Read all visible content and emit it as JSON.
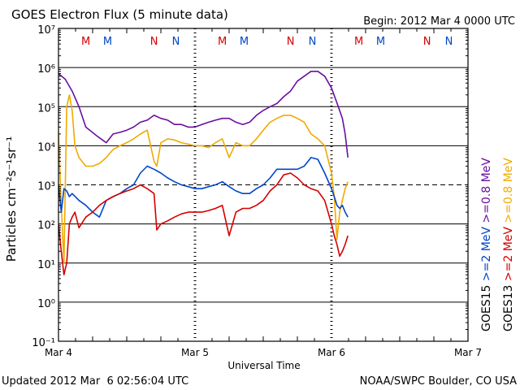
{
  "chart_data": {
    "type": "line",
    "title": "GOES Electron Flux (5 minute data)",
    "begin_label": "Begin: 2012 Mar 4 0000 UTC",
    "xlabel": "Universal Time",
    "ylabel": "Particles cm⁻²s⁻¹sr⁻¹",
    "y_scale": "log",
    "ylim": [
      0.1,
      10000000
    ],
    "y_ticks": [
      {
        "value": 10000000,
        "label": "10⁷"
      },
      {
        "value": 1000000,
        "label": "10⁶"
      },
      {
        "value": 100000,
        "label": "10⁵"
      },
      {
        "value": 10000,
        "label": "10⁴"
      },
      {
        "value": 1000,
        "label": "10³"
      },
      {
        "value": 100,
        "label": "10²"
      },
      {
        "value": 10,
        "label": "10¹"
      },
      {
        "value": 1,
        "label": "10⁰"
      },
      {
        "value": 0.1,
        "label": "10⁻¹"
      }
    ],
    "xlim_days": [
      0,
      3
    ],
    "x_ticks": [
      {
        "day": 0,
        "label": "Mar 4"
      },
      {
        "day": 1,
        "label": "Mar 5"
      },
      {
        "day": 2,
        "label": "Mar 6"
      },
      {
        "day": 3,
        "label": "Mar 7"
      }
    ],
    "threshold_line": 1000,
    "markers": [
      {
        "day": 0.2,
        "label": "M",
        "color": "#d40000"
      },
      {
        "day": 0.36,
        "label": "M",
        "color": "#0046c8"
      },
      {
        "day": 0.7,
        "label": "N",
        "color": "#d40000"
      },
      {
        "day": 0.86,
        "label": "N",
        "color": "#0046c8"
      },
      {
        "day": 1.2,
        "label": "M",
        "color": "#d40000"
      },
      {
        "day": 1.36,
        "label": "M",
        "color": "#0046c8"
      },
      {
        "day": 1.7,
        "label": "N",
        "color": "#d40000"
      },
      {
        "day": 1.86,
        "label": "N",
        "color": "#0046c8"
      },
      {
        "day": 2.2,
        "label": "M",
        "color": "#d40000"
      },
      {
        "day": 2.36,
        "label": "M",
        "color": "#0046c8"
      },
      {
        "day": 2.7,
        "label": "N",
        "color": "#d40000"
      },
      {
        "day": 2.86,
        "label": "N",
        "color": "#0046c8"
      }
    ],
    "legend": {
      "goes13": {
        "label": "GOES13",
        "color": "#000000"
      },
      "goes15": {
        "label": "GOES15",
        "color": "#000000"
      },
      "entries": [
        {
          "label": ">=0.8 MeV",
          "color": "#f0aa00"
        },
        {
          "label": ">=0.8 MeV",
          "color": "#6a0fa0"
        },
        {
          "label": ">=2 MeV",
          "color": "#d40000"
        },
        {
          "label": ">=2 MeV",
          "color": "#0046c8"
        }
      ]
    },
    "series": [
      {
        "name": "GOES15 >=0.8 MeV",
        "color": "#6a0fa0",
        "x": [
          0.0,
          0.05,
          0.1,
          0.15,
          0.2,
          0.28,
          0.35,
          0.4,
          0.45,
          0.5,
          0.55,
          0.6,
          0.65,
          0.7,
          0.75,
          0.8,
          0.85,
          0.9,
          0.95,
          1.0,
          1.05,
          1.1,
          1.15,
          1.2,
          1.25,
          1.3,
          1.35,
          1.4,
          1.45,
          1.5,
          1.55,
          1.6,
          1.65,
          1.7,
          1.75,
          1.8,
          1.85,
          1.9,
          1.95,
          2.0,
          2.05,
          2.08,
          2.1,
          2.12
        ],
        "y": [
          700000,
          500000,
          250000,
          100000,
          30000,
          18000,
          12000,
          20000,
          22000,
          25000,
          30000,
          40000,
          45000,
          60000,
          50000,
          45000,
          35000,
          35000,
          30000,
          30000,
          35000,
          40000,
          45000,
          50000,
          50000,
          40000,
          35000,
          40000,
          60000,
          80000,
          100000,
          120000,
          180000,
          250000,
          450000,
          600000,
          800000,
          800000,
          600000,
          300000,
          100000,
          50000,
          20000,
          5000
        ]
      },
      {
        "name": "GOES13 >=0.8 MeV",
        "color": "#f0aa00",
        "x": [
          0.0,
          0.02,
          0.04,
          0.06,
          0.08,
          0.1,
          0.12,
          0.15,
          0.2,
          0.25,
          0.3,
          0.35,
          0.4,
          0.45,
          0.5,
          0.55,
          0.6,
          0.65,
          0.7,
          0.72,
          0.75,
          0.8,
          0.85,
          0.9,
          0.95,
          1.0,
          1.05,
          1.1,
          1.15,
          1.2,
          1.25,
          1.3,
          1.35,
          1.4,
          1.45,
          1.5,
          1.55,
          1.6,
          1.65,
          1.7,
          1.75,
          1.8,
          1.85,
          1.9,
          1.95,
          2.0,
          2.02,
          2.04,
          2.06,
          2.08,
          2.1,
          2.12
        ],
        "y": [
          20000,
          300,
          10,
          100000,
          200000,
          80000,
          10000,
          5000,
          3000,
          3000,
          3500,
          5000,
          8000,
          10000,
          12000,
          15000,
          20000,
          25000,
          4000,
          3000,
          12000,
          15000,
          14000,
          12000,
          11000,
          10000,
          10000,
          9000,
          12000,
          15000,
          5000,
          12000,
          10000,
          10000,
          15000,
          25000,
          40000,
          50000,
          60000,
          60000,
          50000,
          40000,
          20000,
          15000,
          10000,
          2000,
          500,
          40,
          200,
          400,
          800,
          1200
        ]
      },
      {
        "name": "GOES15 >=2 MeV",
        "color": "#0046c8",
        "x": [
          0.0,
          0.02,
          0.04,
          0.06,
          0.08,
          0.1,
          0.15,
          0.2,
          0.25,
          0.3,
          0.35,
          0.4,
          0.45,
          0.5,
          0.55,
          0.6,
          0.65,
          0.7,
          0.75,
          0.8,
          0.85,
          0.9,
          0.95,
          1.0,
          1.05,
          1.1,
          1.15,
          1.2,
          1.25,
          1.3,
          1.35,
          1.4,
          1.45,
          1.5,
          1.55,
          1.6,
          1.65,
          1.7,
          1.75,
          1.8,
          1.85,
          1.9,
          1.95,
          2.0,
          2.02,
          2.04,
          2.06,
          2.08,
          2.1,
          2.12
        ],
        "y": [
          1000,
          200,
          800,
          700,
          500,
          600,
          400,
          300,
          200,
          150,
          400,
          500,
          600,
          800,
          1000,
          2000,
          3000,
          2500,
          2000,
          1500,
          1200,
          1000,
          900,
          800,
          800,
          900,
          1000,
          1200,
          900,
          700,
          600,
          600,
          800,
          1000,
          1500,
          2500,
          2500,
          2500,
          2500,
          3000,
          5000,
          4500,
          2000,
          800,
          500,
          300,
          250,
          300,
          200,
          150
        ]
      },
      {
        "name": "GOES13 >=2 MeV",
        "color": "#d40000",
        "x": [
          0.0,
          0.02,
          0.04,
          0.06,
          0.08,
          0.1,
          0.12,
          0.15,
          0.2,
          0.25,
          0.3,
          0.35,
          0.4,
          0.45,
          0.5,
          0.55,
          0.6,
          0.65,
          0.7,
          0.72,
          0.75,
          0.8,
          0.85,
          0.9,
          0.95,
          1.0,
          1.05,
          1.1,
          1.15,
          1.2,
          1.25,
          1.3,
          1.35,
          1.4,
          1.45,
          1.5,
          1.55,
          1.6,
          1.65,
          1.7,
          1.75,
          1.8,
          1.85,
          1.9,
          1.95,
          2.0,
          2.02,
          2.04,
          2.06,
          2.08,
          2.1,
          2.12
        ],
        "y": [
          100,
          20,
          5,
          10,
          100,
          150,
          200,
          80,
          150,
          200,
          300,
          400,
          500,
          600,
          700,
          800,
          1000,
          800,
          600,
          70,
          100,
          120,
          150,
          180,
          200,
          200,
          200,
          220,
          250,
          300,
          50,
          200,
          250,
          250,
          300,
          400,
          700,
          1000,
          1800,
          2000,
          1500,
          1000,
          800,
          700,
          400,
          100,
          50,
          30,
          15,
          20,
          30,
          50
        ]
      }
    ]
  },
  "footer": {
    "updated": "Updated 2012 Mar  6 02:56:04 UTC",
    "credit": "NOAA/SWPC Boulder, CO USA"
  }
}
